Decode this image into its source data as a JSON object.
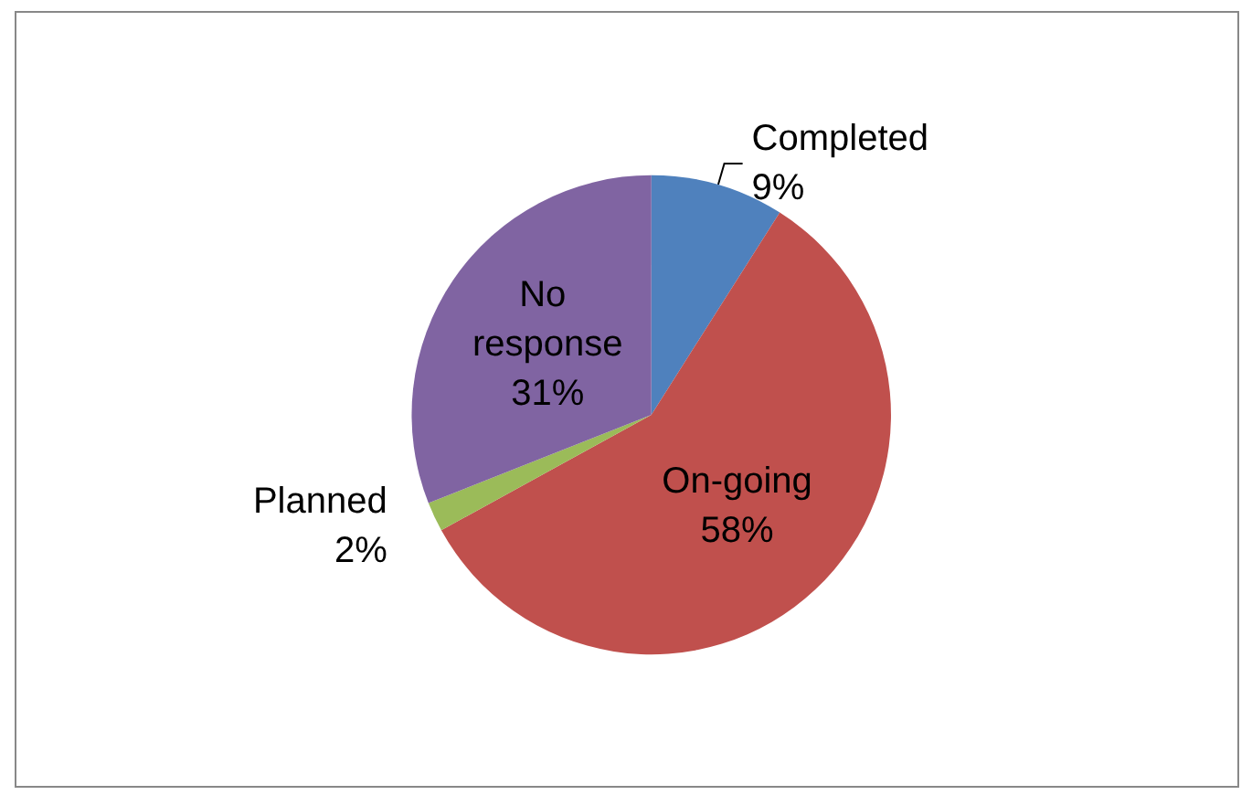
{
  "chart_data": {
    "type": "pie",
    "categories": [
      "Completed",
      "On-going",
      "Planned",
      "No response"
    ],
    "values": [
      9,
      58,
      2,
      31
    ],
    "colors": [
      "#4f81bd",
      "#c0504d",
      "#9bbb59",
      "#8064a2"
    ],
    "value_labels": [
      "9%",
      "58%",
      "2%",
      "31%"
    ],
    "legend": false
  }
}
